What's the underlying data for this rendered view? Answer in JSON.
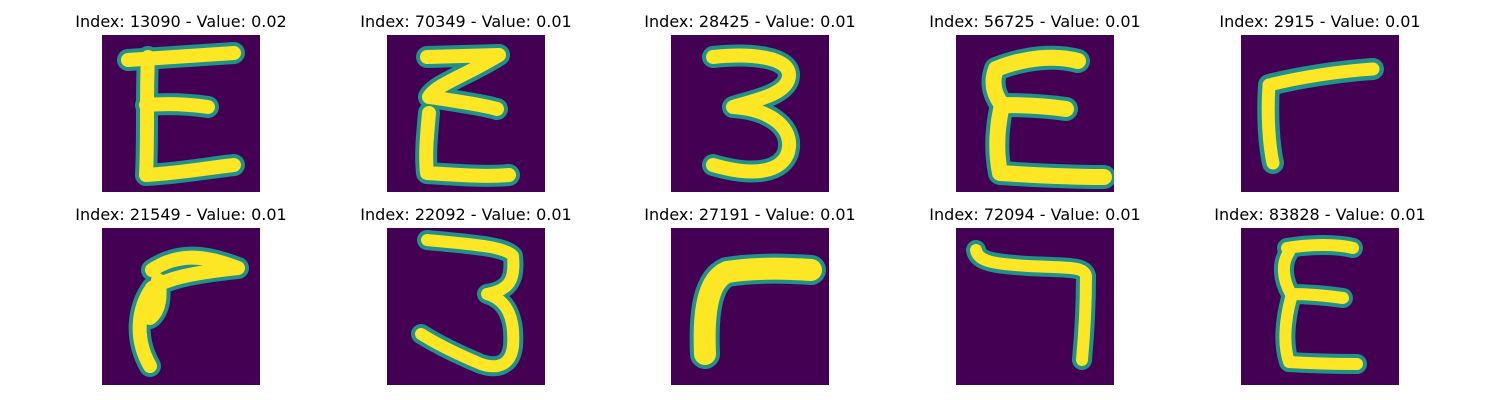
{
  "colors": {
    "page_background": "#ffffff",
    "image_background": "#440154",
    "stroke_core": "#fde725",
    "stroke_edge": "#21918c",
    "title_text": "#000000"
  },
  "panels": [
    {
      "index": "13090",
      "value": "0.02",
      "title": "Index: 13090 - Value: 0.02",
      "glyph": "E-shape"
    },
    {
      "index": "70349",
      "value": "0.01",
      "title": "Index: 70349 - Value: 0.01",
      "glyph": "E-shape"
    },
    {
      "index": "28425",
      "value": "0.01",
      "title": "Index: 28425 - Value: 0.01",
      "glyph": "3-shape"
    },
    {
      "index": "56725",
      "value": "0.01",
      "title": "Index: 56725 - Value: 0.01",
      "glyph": "E-shape"
    },
    {
      "index": "2915",
      "value": "0.01",
      "title": "Index: 2915 - Value: 0.01",
      "glyph": "corner-shape"
    },
    {
      "index": "21549",
      "value": "0.01",
      "title": "Index: 21549 - Value: 0.01",
      "glyph": "hook-shape"
    },
    {
      "index": "22092",
      "value": "0.01",
      "title": "Index: 22092 - Value: 0.01",
      "glyph": "3-shape"
    },
    {
      "index": "27191",
      "value": "0.01",
      "title": "Index: 27191 - Value: 0.01",
      "glyph": "corner-shape"
    },
    {
      "index": "72094",
      "value": "0.01",
      "title": "Index: 72094 - Value: 0.01",
      "glyph": "reverse-corner-shape"
    },
    {
      "index": "83828",
      "value": "0.01",
      "title": "Index: 83828 - Value: 0.01",
      "glyph": "E-shape"
    }
  ]
}
